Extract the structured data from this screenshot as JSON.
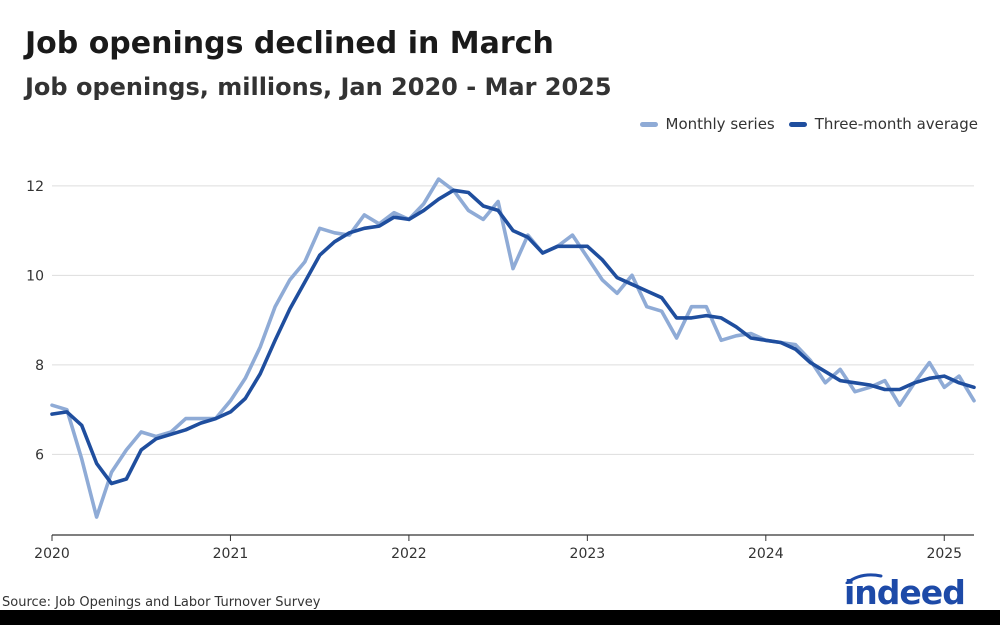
{
  "chart_data": {
    "type": "line",
    "title": "Job openings declined in March",
    "subtitle": "Job openings, millions, Jan 2020 - Mar 2025",
    "x_start": "2020-01",
    "x_end": "2025-03",
    "x_tick_labels": [
      "2020",
      "2021",
      "2022",
      "2023",
      "2024",
      "2025"
    ],
    "y_ticks": [
      6,
      8,
      10,
      12
    ],
    "ylim": [
      4.2,
      12.8
    ],
    "grid": true,
    "legend_position": "top-right",
    "series": [
      {
        "name": "Monthly series",
        "color": "#8fabd6",
        "values": [
          7.1,
          7.0,
          5.9,
          4.6,
          5.6,
          6.1,
          6.5,
          6.4,
          6.5,
          6.8,
          6.8,
          6.8,
          7.2,
          7.7,
          8.4,
          9.3,
          9.9,
          10.3,
          11.05,
          10.95,
          10.9,
          11.35,
          11.15,
          11.4,
          11.25,
          11.6,
          12.15,
          11.9,
          11.45,
          11.25,
          11.65,
          10.15,
          10.9,
          10.5,
          10.65,
          10.9,
          10.4,
          9.9,
          9.6,
          10.0,
          9.3,
          9.2,
          8.6,
          9.3,
          9.3,
          8.55,
          8.65,
          8.7,
          8.55,
          8.5,
          8.45,
          8.1,
          7.6,
          7.9,
          7.4,
          7.5,
          7.65,
          7.1,
          7.6,
          8.05,
          7.5,
          7.75,
          7.2
        ]
      },
      {
        "name": "Three-month average",
        "color": "#1f4e9e",
        "values": [
          6.9,
          6.95,
          6.65,
          5.8,
          5.35,
          5.45,
          6.1,
          6.35,
          6.45,
          6.55,
          6.7,
          6.8,
          6.95,
          7.25,
          7.8,
          8.55,
          9.25,
          9.85,
          10.45,
          10.75,
          10.95,
          11.05,
          11.1,
          11.3,
          11.25,
          11.45,
          11.7,
          11.9,
          11.85,
          11.55,
          11.45,
          11.0,
          10.85,
          10.5,
          10.65,
          10.65,
          10.65,
          10.35,
          9.95,
          9.8,
          9.65,
          9.5,
          9.05,
          9.05,
          9.1,
          9.05,
          8.85,
          8.6,
          8.55,
          8.5,
          8.35,
          8.05,
          7.85,
          7.65,
          7.6,
          7.55,
          7.45,
          7.45,
          7.6,
          7.7,
          7.75,
          7.6,
          7.5
        ]
      }
    ]
  },
  "source": "Source: Job Openings and Labor Turnover Survey",
  "logo_text": "indeed",
  "colors": {
    "grid": "#dddddd",
    "axis": "#333333",
    "text": "#333333",
    "brand": "#1d4aa8"
  }
}
